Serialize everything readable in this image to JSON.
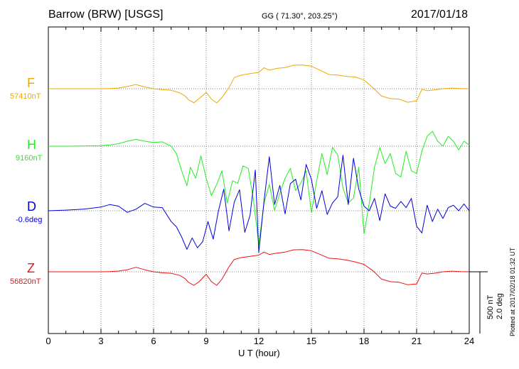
{
  "header": {
    "station": "Barrow (BRW)  [USGS]",
    "coords": "GG ( 71.30°, 203.25°)",
    "date": "2017/01/18"
  },
  "footer": {
    "plotted": "Plotted at 2017/02/18 01:32 UT"
  },
  "scale": {
    "nt": "500 nT",
    "deg": "2.0 deg"
  },
  "chart_data": {
    "type": "line",
    "xlabel": "U T (hour)",
    "xlim": [
      0,
      24
    ],
    "xticks": [
      "0",
      "3",
      "6",
      "9",
      "12",
      "15",
      "18",
      "21",
      "24"
    ],
    "grid": true,
    "series": [
      {
        "name": "F",
        "baseline_label": "57410nT",
        "color": "#f0a800",
        "unit": "nT",
        "baseline": 57410,
        "x": [
          0,
          1,
          2,
          3,
          3.5,
          4,
          4.5,
          5,
          5.5,
          6,
          6.5,
          7,
          7.5,
          7.8,
          8,
          8.3,
          8.6,
          9,
          9.3,
          9.6,
          9.9,
          10.3,
          10.6,
          11,
          11.5,
          12,
          12.3,
          12.6,
          13,
          13.5,
          14,
          14.5,
          15,
          15.5,
          16,
          16.5,
          17,
          17.5,
          18,
          18.5,
          19,
          19.5,
          20,
          20.5,
          21,
          21.3,
          21.6,
          22,
          22.5,
          23,
          23.5,
          24
        ],
        "y": [
          57410,
          57410,
          57410,
          57410,
          57412,
          57416,
          57428,
          57444,
          57424,
          57410,
          57402,
          57398,
          57376,
          57350,
          57320,
          57296,
          57330,
          57380,
          57326,
          57295,
          57338,
          57420,
          57500,
          57520,
          57532,
          57542,
          57580,
          57560,
          57574,
          57582,
          57600,
          57602,
          57592,
          57560,
          57525,
          57520,
          57510,
          57505,
          57480,
          57420,
          57350,
          57330,
          57325,
          57300,
          57312,
          57405,
          57394,
          57400,
          57410,
          57415,
          57412,
          57410
        ]
      },
      {
        "name": "H",
        "baseline_label": "9160nT",
        "color": "#22ee22",
        "unit": "nT",
        "baseline": 9160,
        "x": [
          0,
          1,
          2,
          3,
          3.5,
          4,
          4.5,
          5,
          5.5,
          6,
          6.5,
          7,
          7.3,
          7.6,
          7.9,
          8.1,
          8.4,
          8.7,
          9,
          9.3,
          9.6,
          9.9,
          10.2,
          10.5,
          10.8,
          11.1,
          11.4,
          11.7,
          12,
          12.3,
          12.6,
          12.9,
          13.2,
          13.5,
          13.8,
          14.1,
          14.4,
          14.7,
          15,
          15.3,
          15.6,
          15.9,
          16.2,
          16.5,
          16.8,
          17.1,
          17.4,
          17.7,
          18,
          18.3,
          18.6,
          18.9,
          19.2,
          19.5,
          19.8,
          20.1,
          20.4,
          20.7,
          21,
          21.3,
          21.6,
          21.9,
          22.2,
          22.5,
          22.8,
          23.1,
          23.4,
          23.7,
          24
        ],
        "y": [
          9160,
          9160,
          9162,
          9164,
          9170,
          9180,
          9200,
          9215,
          9200,
          9190,
          9195,
          9160,
          9100,
          8960,
          8840,
          8990,
          8900,
          9080,
          8900,
          8760,
          8850,
          8960,
          8700,
          8880,
          8860,
          9000,
          8980,
          8720,
          8360,
          8700,
          8850,
          8640,
          8780,
          8900,
          8980,
          8800,
          8860,
          8960,
          8620,
          8880,
          9100,
          8930,
          9150,
          9090,
          8820,
          8700,
          8740,
          8990,
          8450,
          8700,
          8990,
          9150,
          9020,
          9100,
          8940,
          8910,
          9120,
          8960,
          8940,
          9120,
          9240,
          9280,
          9200,
          9160,
          9240,
          9200,
          9130,
          9200,
          9170
        ]
      },
      {
        "name": "D",
        "baseline_label": "-0.6deg",
        "color": "#0000dd",
        "unit": "deg",
        "baseline": -0.6,
        "x": [
          0,
          1,
          2,
          3,
          3.5,
          4,
          4.5,
          5,
          5.5,
          6,
          6.5,
          7,
          7.3,
          7.6,
          7.9,
          8.2,
          8.5,
          8.8,
          9.1,
          9.4,
          9.7,
          10,
          10.3,
          10.6,
          10.9,
          11.2,
          11.5,
          11.8,
          12,
          12.3,
          12.6,
          12.9,
          13.2,
          13.5,
          13.8,
          14.1,
          14.4,
          14.7,
          15,
          15.3,
          15.6,
          15.9,
          16.2,
          16.5,
          16.8,
          17.1,
          17.4,
          17.7,
          18,
          18.3,
          18.6,
          18.9,
          19.2,
          19.5,
          19.8,
          20.1,
          20.4,
          20.7,
          21,
          21.3,
          21.6,
          21.9,
          22.2,
          22.5,
          22.8,
          23.1,
          23.4,
          23.7,
          24
        ],
        "y": [
          -0.6,
          -0.58,
          -0.55,
          -0.48,
          -0.4,
          -0.45,
          -0.65,
          -0.55,
          -0.36,
          -0.48,
          -0.5,
          -0.95,
          -1.12,
          -1.45,
          -1.85,
          -1.48,
          -1.8,
          -1.6,
          -0.95,
          -1.52,
          -0.6,
          0.1,
          -1.25,
          -0.32,
          0.08,
          -1.3,
          -0.75,
          0.72,
          -1.95,
          -0.28,
          1.15,
          -0.4,
          0.22,
          -0.7,
          0.28,
          0.42,
          -0.25,
          0.9,
          0.42,
          -0.52,
          0.05,
          -0.72,
          -0.35,
          -0.15,
          1.2,
          -0.4,
          1.1,
          0.1,
          -0.45,
          -0.6,
          -0.2,
          -0.92,
          -0.05,
          -0.45,
          -0.52,
          -0.3,
          -0.5,
          -0.2,
          -1.1,
          -1.32,
          -0.42,
          -0.95,
          -0.55,
          -0.85,
          -0.5,
          -0.42,
          -0.6,
          -0.38,
          -0.6
        ]
      },
      {
        "name": "Z",
        "baseline_label": "56820nT",
        "color": "#ee1111",
        "unit": "nT",
        "baseline": 56820,
        "x": [
          0,
          1,
          2,
          3,
          3.5,
          4,
          4.5,
          5,
          5.5,
          6,
          6.5,
          7,
          7.5,
          7.8,
          8,
          8.3,
          8.6,
          9,
          9.3,
          9.6,
          9.9,
          10.3,
          10.6,
          11,
          11.5,
          12,
          12.3,
          12.6,
          13,
          13.5,
          14,
          14.5,
          15,
          15.5,
          16,
          16.5,
          17,
          17.5,
          18,
          18.5,
          19,
          19.5,
          20,
          20.5,
          21,
          21.3,
          21.6,
          22,
          22.5,
          23,
          23.5,
          24
        ],
        "y": [
          56820,
          56820,
          56820,
          56820,
          56822,
          56826,
          56836,
          56856,
          56836,
          56820,
          56812,
          56808,
          56790,
          56764,
          56734,
          56710,
          56740,
          56800,
          56740,
          56710,
          56760,
          56860,
          56920,
          56935,
          56945,
          56955,
          56980,
          56960,
          56970,
          56980,
          56998,
          57000,
          56990,
          56960,
          56930,
          56925,
          56915,
          56900,
          56880,
          56830,
          56760,
          56740,
          56735,
          56715,
          56722,
          56810,
          56802,
          56808,
          56820,
          56825,
          56822,
          56820
        ]
      }
    ]
  }
}
